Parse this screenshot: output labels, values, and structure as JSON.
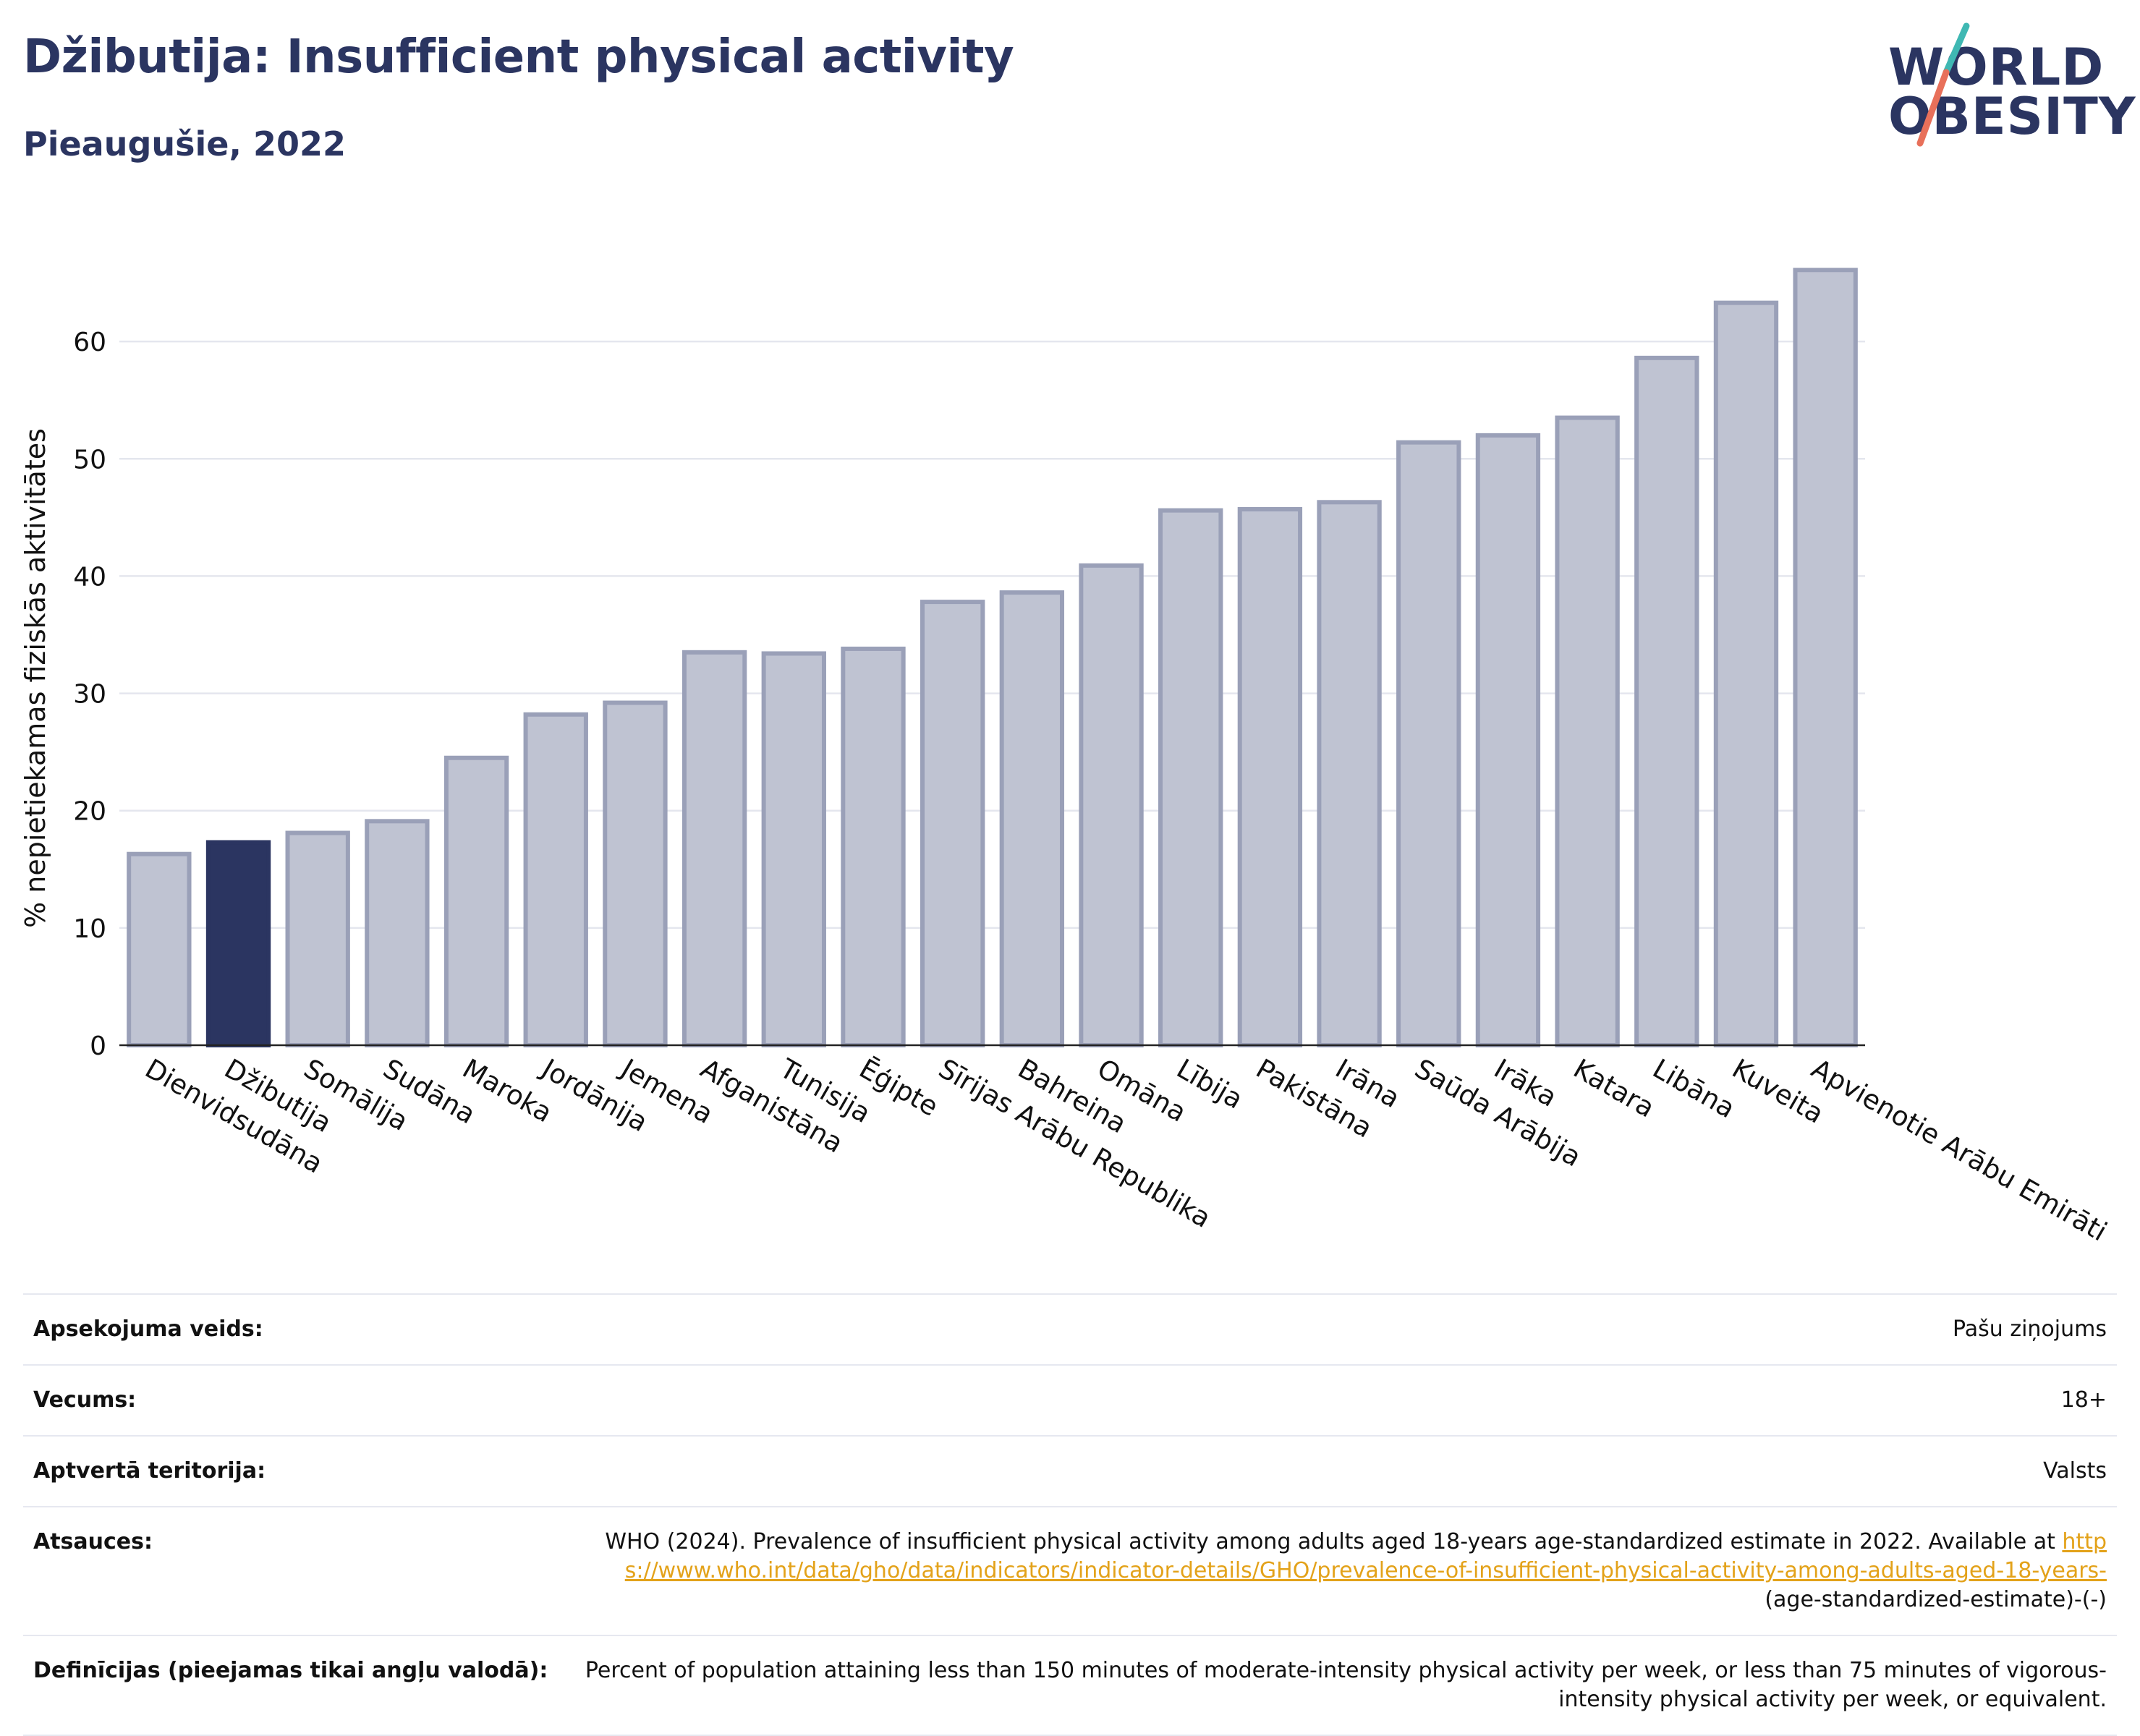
{
  "header": {
    "title": "Džibutija: Insufficient physical activity",
    "subtitle": "Pieaugušie, 2022"
  },
  "logo": {
    "line1": "WORLD",
    "line2": "OBESITY"
  },
  "colors": {
    "highlight": "#2b3561",
    "bar_fill": "#bfc3d2",
    "bar_stroke": "#9aa0b8",
    "grid": "#e4e6ee",
    "link": "#e3a21a",
    "logo_teal": "#3fb8b3",
    "logo_coral": "#e8705a"
  },
  "chart_data": {
    "type": "bar",
    "ylabel": "% nepietiekamas fiziskās aktivitātes",
    "ylim": [
      0,
      70
    ],
    "yticks": [
      0,
      10,
      20,
      30,
      40,
      50,
      60
    ],
    "grid": true,
    "highlight": "Džibutija",
    "categories": [
      "Dienvidsudāna",
      "Džibutija",
      "Somālija",
      "Sudāna",
      "Maroka",
      "Jordānija",
      "Jemena",
      "Afganistāna",
      "Tunisija",
      "Ēģipte",
      "Sīrijas Arābu Republika",
      "Bahreina",
      "Omāna",
      "Lībija",
      "Pakistāna",
      "Irāna",
      "Saūda Arābija",
      "Irāka",
      "Katara",
      "Libāna",
      "Kuveita",
      "Apvienotie Arābu Emirāti"
    ],
    "values": [
      16.3,
      17.3,
      18.1,
      19.1,
      24.5,
      28.2,
      29.2,
      33.5,
      33.4,
      33.8,
      37.8,
      38.6,
      40.9,
      45.6,
      45.7,
      46.3,
      51.4,
      52.0,
      53.5,
      58.6,
      63.3,
      66.1
    ]
  },
  "info": {
    "survey_label": "Apsekojuma veids:",
    "survey_value": "Pašu ziņojums",
    "age_label": "Vecums:",
    "age_value": "18+",
    "coverage_label": "Aptvertā teritorija:",
    "coverage_value": "Valsts",
    "refs_label": "Atsauces:",
    "refs_text": "WHO (2024). Prevalence of insufficient physical activity among adults aged 18-years age-standardized estimate in 2022. Available at",
    "refs_link": "https://www.who.int/data/gho/data/indicators/indicator-details/GHO/prevalence-of-insufficient-physical-activity-among-adults-aged-18-years-",
    "refs_tail": "(age-standardized-estimate)-(-)",
    "defs_label": "Definīcijas (pieejamas tikai angļu valodā):",
    "defs_value": "Percent of population attaining less than 150 minutes of moderate-intensity physical activity per week, or less than 75 minutes of vigorous-intensity physical activity per week, or equivalent."
  }
}
